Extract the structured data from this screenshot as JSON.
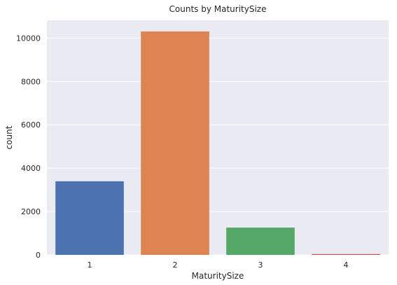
{
  "chart_data": {
    "type": "bar",
    "title": "Counts by MaturitySize",
    "xlabel": "MaturitySize",
    "ylabel": "count",
    "categories": [
      "1",
      "2",
      "3",
      "4"
    ],
    "values": [
      3395,
      10305,
      1260,
      37
    ],
    "colors": [
      "#4c72b0",
      "#dd8452",
      "#55a868",
      "#c44e52"
    ],
    "ylim": [
      0,
      10820
    ],
    "yticks": [
      0,
      2000,
      4000,
      6000,
      8000,
      10000
    ],
    "ytick_labels": [
      "0",
      "2000",
      "4000",
      "6000",
      "8000",
      "10000"
    ],
    "grid": true,
    "background": "#eaeaf2",
    "grid_color": "#ffffff"
  }
}
